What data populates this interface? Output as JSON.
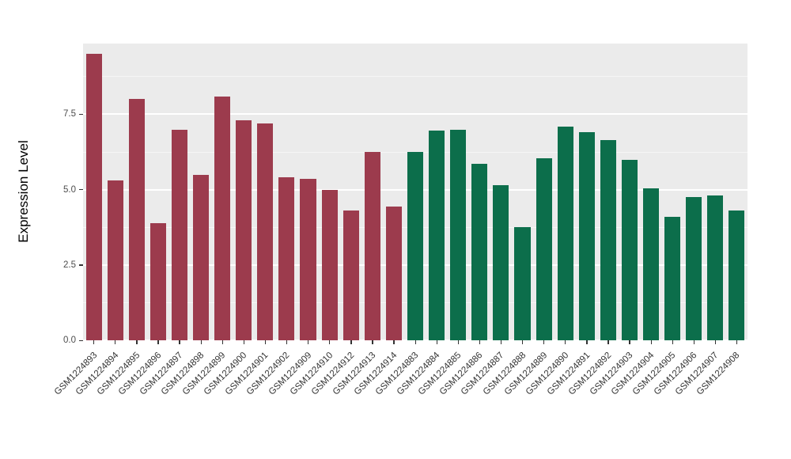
{
  "figure": {
    "background": "#FFFFFF",
    "panel_background": "#EBEBEB",
    "gridline_color": "#FFFFFF"
  },
  "chart_data": {
    "type": "bar",
    "title": "",
    "xlabel": "",
    "ylabel": "Expression Level",
    "ylim": [
      0,
      9.85
    ],
    "yticks": [
      0.0,
      2.5,
      5.0,
      7.5
    ],
    "ytick_labels": [
      "0.0",
      "2.5",
      "5.0",
      "7.5"
    ],
    "yticks_minor": [
      1.25,
      3.75,
      6.25,
      8.75
    ],
    "grid": true,
    "legend": "none",
    "categories": [
      "GSM1224893",
      "GSM1224894",
      "GSM1224895",
      "GSM1224896",
      "GSM1224897",
      "GSM1224898",
      "GSM1224899",
      "GSM1224900",
      "GSM1224901",
      "GSM1224902",
      "GSM1224909",
      "GSM1224910",
      "GSM1224912",
      "GSM1224913",
      "GSM1224914",
      "GSM1224883",
      "GSM1224884",
      "GSM1224885",
      "GSM1224886",
      "GSM1224887",
      "GSM1224888",
      "GSM1224889",
      "GSM1224890",
      "GSM1224891",
      "GSM1224892",
      "GSM1224903",
      "GSM1224904",
      "GSM1224905",
      "GSM1224906",
      "GSM1224907",
      "GSM1224908"
    ],
    "values": [
      9.5,
      5.3,
      8.0,
      3.9,
      7.0,
      5.5,
      8.1,
      7.3,
      7.2,
      5.4,
      5.35,
      5.0,
      4.3,
      6.25,
      4.45,
      6.25,
      6.95,
      7.0,
      5.85,
      5.15,
      3.75,
      6.05,
      7.1,
      6.9,
      6.65,
      6.0,
      5.05,
      4.1,
      4.75,
      4.8,
      4.3
    ],
    "bar_groups": [
      "red",
      "red",
      "red",
      "red",
      "red",
      "red",
      "red",
      "red",
      "red",
      "red",
      "red",
      "red",
      "red",
      "red",
      "red",
      "green",
      "green",
      "green",
      "green",
      "green",
      "green",
      "green",
      "green",
      "green",
      "green",
      "green",
      "green",
      "green",
      "green",
      "green",
      "green"
    ],
    "group_colors": {
      "red": "#9C3B4D",
      "green": "#0C6E4B"
    }
  }
}
